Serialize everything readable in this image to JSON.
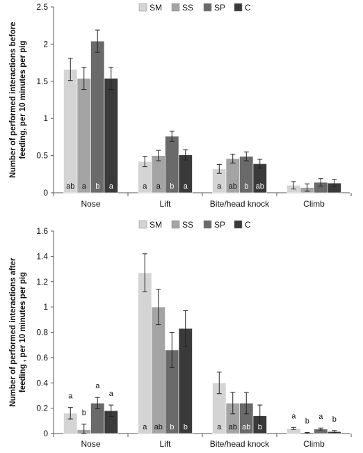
{
  "legend_labels": [
    "SM",
    "SS",
    "SP",
    "C"
  ],
  "chart_data": [
    {
      "type": "bar",
      "panel": "top",
      "ylabel": "Number of performed interactions before feeding, per 10 minutes per pig",
      "ylabel_lines": [
        "Number of performed interactions before",
        "feeding, per 10 minutes per pig"
      ],
      "categories": [
        "Nose",
        "Lift",
        "Bite/head knock",
        "Climb"
      ],
      "ylim": [
        0,
        2.5
      ],
      "yticks": [
        0,
        0.5,
        1,
        1.5,
        2,
        2.5
      ],
      "ytick_labels": [
        "0",
        "0.5",
        "1",
        "1.5",
        "2",
        "2.5"
      ],
      "legend": "top-center",
      "grid": false,
      "series": [
        {
          "name": "SM",
          "color": "#d4d4d4",
          "values": [
            1.66,
            0.42,
            0.32,
            0.1
          ],
          "errors": [
            0.15,
            0.07,
            0.06,
            0.05
          ],
          "letters": [
            "ab",
            "a",
            "a",
            ""
          ]
        },
        {
          "name": "SS",
          "color": "#a4a4a4",
          "values": [
            1.54,
            0.5,
            0.46,
            0.07
          ],
          "errors": [
            0.15,
            0.07,
            0.06,
            0.05
          ],
          "letters": [
            "a",
            "a",
            "ab",
            ""
          ]
        },
        {
          "name": "SP",
          "color": "#6a6a6a",
          "values": [
            2.04,
            0.76,
            0.49,
            0.14
          ],
          "errors": [
            0.15,
            0.07,
            0.06,
            0.05
          ],
          "letters": [
            "b",
            "b",
            "b",
            ""
          ]
        },
        {
          "name": "C",
          "color": "#3a3a3a",
          "values": [
            1.54,
            0.51,
            0.39,
            0.13
          ],
          "errors": [
            0.15,
            0.07,
            0.06,
            0.05
          ],
          "letters": [
            "a",
            "a",
            "ab",
            ""
          ]
        }
      ]
    },
    {
      "type": "bar",
      "panel": "bottom",
      "ylabel": "Number of performed interactions after feeding , per 10 minutes per pig",
      "ylabel_lines": [
        "Number of performed interactions after",
        "feeding , per 10 minutes per pig"
      ],
      "categories": [
        "Nose",
        "Lift",
        "Bite/head knock",
        "Climb"
      ],
      "ylim": [
        0,
        1.6
      ],
      "yticks": [
        0,
        0.2,
        0.4,
        0.6,
        0.8,
        1,
        1.2,
        1.4,
        1.6
      ],
      "ytick_labels": [
        "0",
        "0.2",
        "0.4",
        "0.6",
        "0.8",
        "1",
        "1.2",
        "1.4",
        "1.6"
      ],
      "legend": "top-center",
      "grid": false,
      "series": [
        {
          "name": "SM",
          "color": "#d4d4d4",
          "values": [
            0.16,
            1.27,
            0.4,
            0.04
          ],
          "errors": [
            0.045,
            0.15,
            0.085,
            0.008
          ],
          "letters": [
            "a",
            "a",
            "a",
            "a"
          ],
          "letter_pos": [
            "above",
            "inside",
            "inside",
            "above"
          ]
        },
        {
          "name": "SS",
          "color": "#a4a4a4",
          "values": [
            0.03,
            1.0,
            0.24,
            0.0
          ],
          "errors": [
            0.045,
            0.14,
            0.085,
            0.008
          ],
          "letters": [
            "b",
            "ab",
            "ab",
            "b"
          ],
          "letter_pos": [
            "above",
            "inside",
            "inside",
            "above"
          ]
        },
        {
          "name": "SP",
          "color": "#6a6a6a",
          "values": [
            0.24,
            0.66,
            0.24,
            0.035
          ],
          "errors": [
            0.045,
            0.14,
            0.085,
            0.008
          ],
          "letters": [
            "a",
            "b",
            "ab",
            "a"
          ],
          "letter_pos": [
            "above",
            "inside",
            "inside",
            "above"
          ]
        },
        {
          "name": "C",
          "color": "#3a3a3a",
          "values": [
            0.18,
            0.83,
            0.14,
            0.015
          ],
          "errors": [
            0.045,
            0.14,
            0.085,
            0.008
          ],
          "letters": [
            "a",
            "b",
            "b",
            "b"
          ],
          "letter_pos": [
            "above",
            "inside",
            "inside",
            "above"
          ]
        }
      ]
    }
  ]
}
